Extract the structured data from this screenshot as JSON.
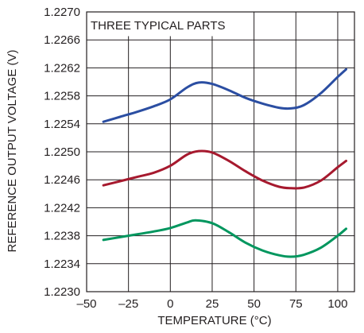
{
  "chart_data": {
    "type": "line",
    "title": "",
    "annotation": "THREE TYPICAL PARTS",
    "xlabel": "TEMPERATURE (°C)",
    "ylabel": "REFERENCE OUTPUT VOLTAGE (V)",
    "xlim": [
      -50,
      110
    ],
    "ylim": [
      1.223,
      1.227
    ],
    "x_ticks": [
      -50,
      -25,
      0,
      25,
      50,
      75,
      100
    ],
    "x_tick_labels": [
      "–50",
      "–25",
      "0",
      "25",
      "50",
      "75",
      "100"
    ],
    "y_ticks": [
      1.223,
      1.2234,
      1.2238,
      1.2242,
      1.2246,
      1.225,
      1.2254,
      1.2258,
      1.2262,
      1.2266,
      1.227
    ],
    "y_tick_labels": [
      "1.2230",
      "1.2234",
      "1.2238",
      "1.2242",
      "1.2246",
      "1.2250",
      "1.2254",
      "1.2258",
      "1.2262",
      "1.2266",
      "1.2270"
    ],
    "grid": true,
    "legend": "none",
    "series": [
      {
        "color": "#2b4ea2",
        "x": [
          -40,
          -30,
          -20,
          -10,
          0,
          10,
          17,
          25,
          35,
          45,
          55,
          65,
          72,
          80,
          90,
          100,
          105
        ],
        "y": [
          1.22543,
          1.2255,
          1.22557,
          1.22565,
          1.22575,
          1.22592,
          1.22599,
          1.22597,
          1.22588,
          1.22577,
          1.22569,
          1.22563,
          1.22562,
          1.22567,
          1.22584,
          1.22607,
          1.22618
        ]
      },
      {
        "color": "#a6192e",
        "x": [
          -40,
          -30,
          -20,
          -10,
          0,
          10,
          17,
          25,
          35,
          45,
          55,
          65,
          72,
          80,
          90,
          100,
          105
        ],
        "y": [
          1.22452,
          1.22458,
          1.22464,
          1.2247,
          1.2248,
          1.22496,
          1.22501,
          1.22499,
          1.22487,
          1.22472,
          1.22459,
          1.2245,
          1.22448,
          1.22449,
          1.22459,
          1.22478,
          1.22487
        ]
      },
      {
        "color": "#00965e",
        "x": [
          -40,
          -30,
          -20,
          -10,
          0,
          10,
          15,
          25,
          35,
          45,
          55,
          65,
          72,
          80,
          90,
          100,
          105
        ],
        "y": [
          1.22374,
          1.22378,
          1.22382,
          1.22386,
          1.22391,
          1.22399,
          1.22402,
          1.22398,
          1.22385,
          1.2237,
          1.22359,
          1.22352,
          1.2235,
          1.22353,
          1.22363,
          1.2238,
          1.2239
        ]
      }
    ]
  }
}
